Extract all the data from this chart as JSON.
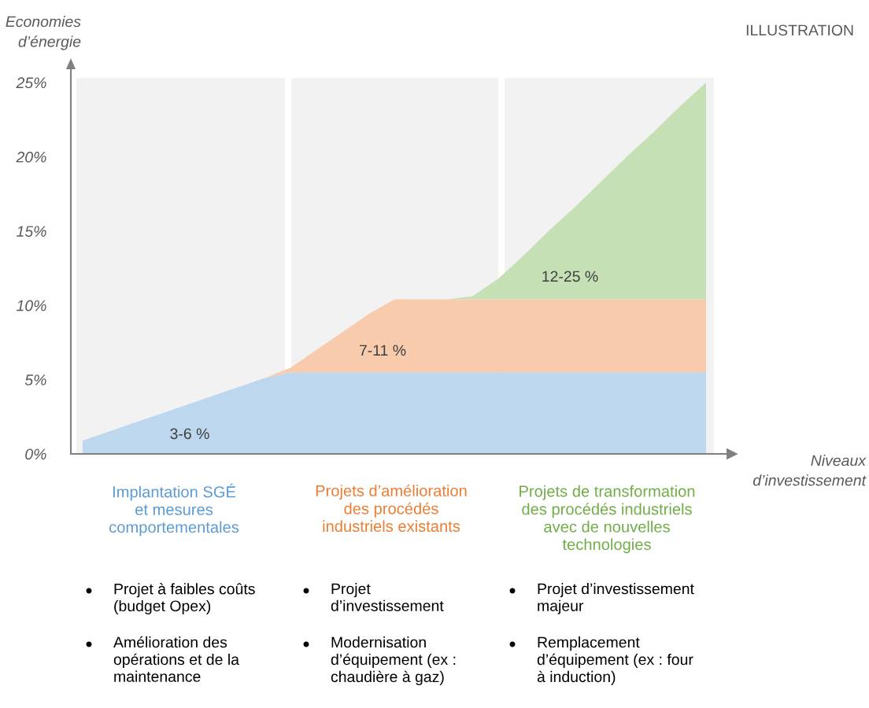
{
  "chart_data": {
    "type": "area",
    "stacked": true,
    "ylabel": "Economies\nd’énergie",
    "xlabel": "Niveaux\nd’investissement",
    "categories": [
      null,
      null,
      null,
      null,
      null,
      null,
      null,
      null,
      null,
      null,
      null,
      null,
      null,
      null,
      null,
      null,
      null,
      null,
      null,
      null,
      null,
      null,
      null,
      null,
      null
    ],
    "series": [
      {
        "color": "#bdd7ee",
        "values": [
          0.9,
          1.5,
          2.1,
          2.7,
          3.3,
          3.9,
          4.5,
          5.1,
          5.5,
          5.5,
          5.5,
          5.5,
          5.5,
          5.5,
          5.5,
          5.5,
          5.5,
          5.5,
          5.5,
          5.5,
          5.5,
          5.5,
          5.5,
          5.5,
          5.5
        ]
      },
      {
        "color": "#f8cbad",
        "values": [
          0,
          0,
          0,
          0,
          0,
          0,
          0,
          0,
          0.3,
          1.5,
          2.7,
          3.9,
          4.9,
          4.9,
          4.9,
          4.9,
          4.9,
          4.9,
          4.9,
          4.9,
          4.9,
          4.9,
          4.9,
          4.9,
          4.9
        ]
      },
      {
        "color": "#c5e0b4",
        "values": [
          0,
          0,
          0,
          0,
          0,
          0,
          0,
          0,
          0,
          0,
          0,
          0,
          0,
          0,
          0,
          0.2,
          1.4,
          3.0,
          4.7,
          6.3,
          8.0,
          9.7,
          11.3,
          13.0,
          14.6
        ]
      }
    ],
    "ylim": [
      0,
      26
    ],
    "yticks": [
      {
        "value": 0,
        "label": "0%"
      },
      {
        "value": 5,
        "label": "5%"
      },
      {
        "value": 10,
        "label": "10%"
      },
      {
        "value": 15,
        "label": "15%"
      },
      {
        "value": 20,
        "label": "20%"
      },
      {
        "value": 25,
        "label": "25%"
      }
    ],
    "tick_labels": "y",
    "annotations": [
      "ILLUSTRATION",
      "3-6 %",
      "7-11 %",
      "12-25 %",
      "Implantation SGÉ\net mesures\ncomportementales",
      "Projets d’amélioration\ndes procédés\nindustriels existants",
      "Projets de transformation\ndes procédés industriels\navec de nouvelles\ntechnologies",
      "Projet à faibles coûts\n(budget Opex)",
      "Amélioration des\nopérations et de la\nmaintenance",
      "Projet\nd’investissement",
      "Modernisation\nd’équipement (ex :\nchaudière à gaz)",
      "Projet d’investissement\nmajeur",
      "Remplacement\nd’équipement (ex : four\nà induction)"
    ]
  }
}
